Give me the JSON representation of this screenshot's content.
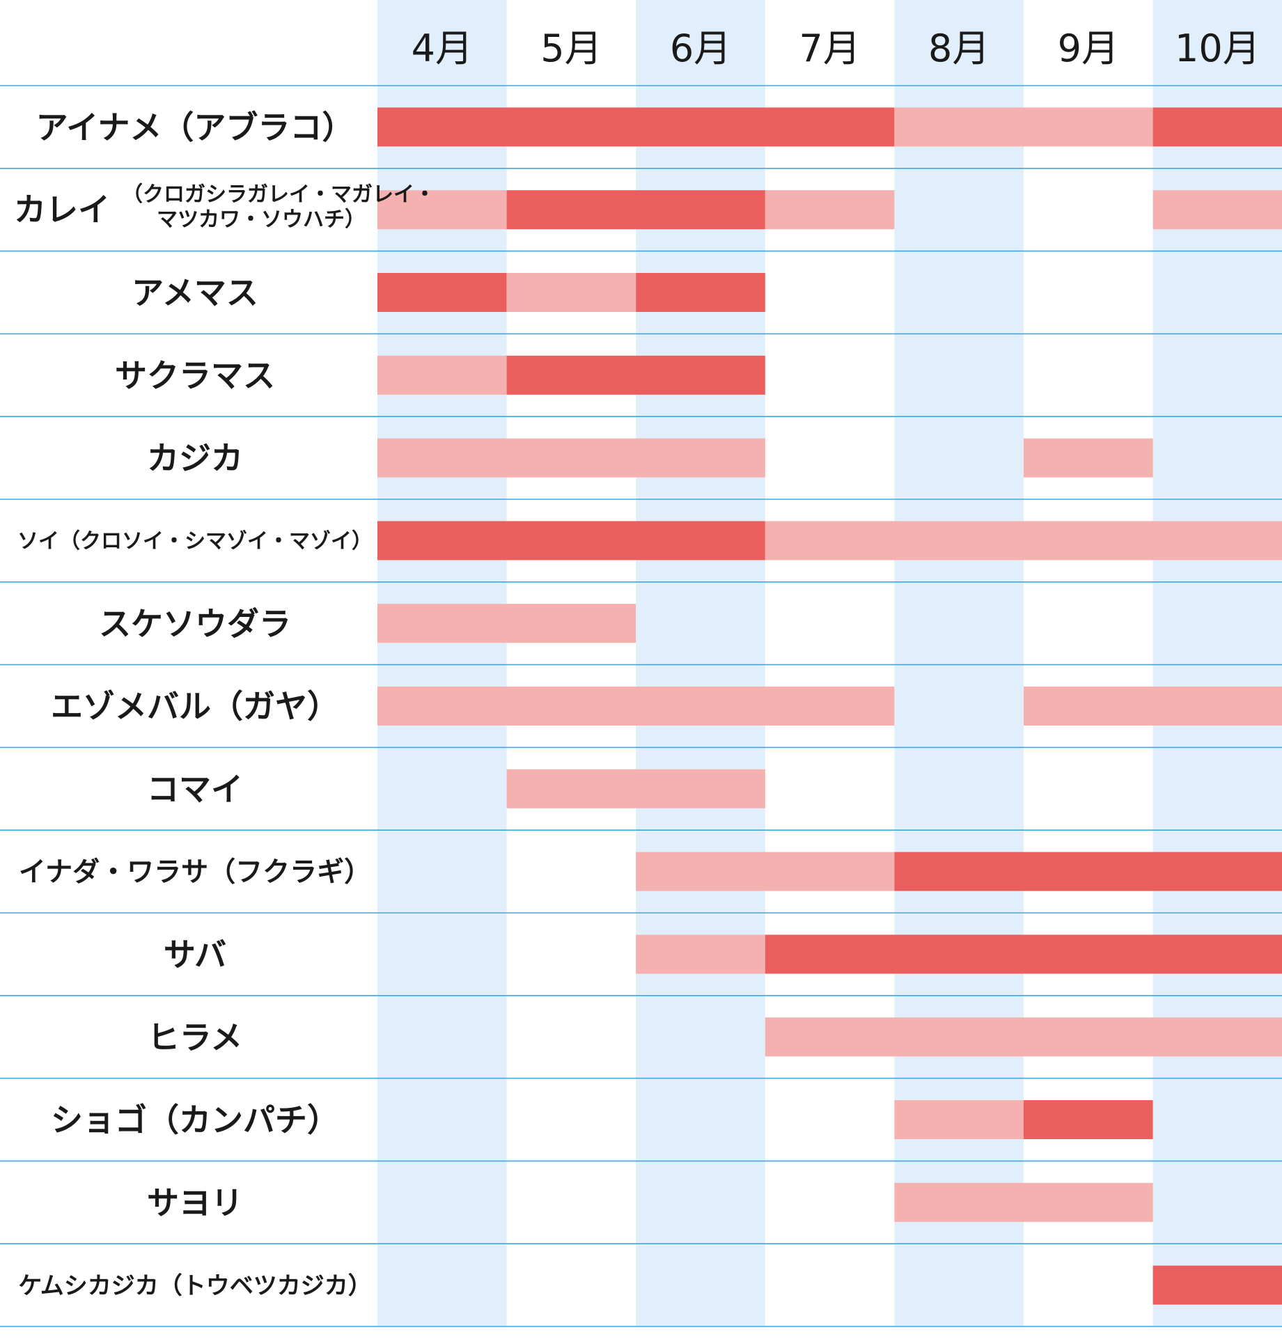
{
  "chart_data": {
    "type": "bar",
    "subtype": "timeline",
    "title": "",
    "xlabel": "",
    "ylabel": "",
    "months": [
      "4月",
      "5月",
      "6月",
      "7月",
      "8月",
      "9月",
      "10月"
    ],
    "legend": [],
    "colors": {
      "peak": "#ea5f5e",
      "season": "#f4b1b0",
      "column_shade": "#e1eefb",
      "grid_line": "#3fa7e0"
    },
    "rows": [
      {
        "name": "アイナメ（アブラコ）",
        "sub": [],
        "bars": [
          {
            "start": 0,
            "end": 4,
            "level": "peak"
          },
          {
            "start": 4,
            "end": 6,
            "level": "season"
          },
          {
            "start": 6,
            "end": 7,
            "level": "peak"
          }
        ]
      },
      {
        "name": "カレイ",
        "sub": [
          "（クロガシラガレイ・マガレイ・",
          "マツカワ・ソウハチ）"
        ],
        "bars": [
          {
            "start": 0,
            "end": 1,
            "level": "season"
          },
          {
            "start": 1,
            "end": 3,
            "level": "peak"
          },
          {
            "start": 3,
            "end": 4,
            "level": "season"
          },
          {
            "start": 6,
            "end": 7,
            "level": "season"
          }
        ]
      },
      {
        "name": "アメマス",
        "sub": [],
        "bars": [
          {
            "start": 0,
            "end": 1,
            "level": "peak"
          },
          {
            "start": 1,
            "end": 2,
            "level": "season"
          },
          {
            "start": 2,
            "end": 3,
            "level": "peak"
          }
        ]
      },
      {
        "name": "サクラマス",
        "sub": [],
        "bars": [
          {
            "start": 0,
            "end": 1,
            "level": "season"
          },
          {
            "start": 1,
            "end": 3,
            "level": "peak"
          }
        ]
      },
      {
        "name": "カジカ",
        "sub": [],
        "bars": [
          {
            "start": 0,
            "end": 3,
            "level": "season"
          },
          {
            "start": 5,
            "end": 6,
            "level": "season"
          }
        ]
      },
      {
        "name": "ソイ（クロソイ・シマゾイ・マゾイ）",
        "sub": [],
        "bars": [
          {
            "start": 0,
            "end": 3,
            "level": "peak"
          },
          {
            "start": 3,
            "end": 7,
            "level": "season"
          }
        ]
      },
      {
        "name": "スケソウダラ",
        "sub": [],
        "bars": [
          {
            "start": 0,
            "end": 2,
            "level": "season"
          }
        ]
      },
      {
        "name": "エゾメバル（ガヤ）",
        "sub": [],
        "bars": [
          {
            "start": 0,
            "end": 4,
            "level": "season"
          },
          {
            "start": 5,
            "end": 7,
            "level": "season"
          }
        ]
      },
      {
        "name": "コマイ",
        "sub": [],
        "bars": [
          {
            "start": 1,
            "end": 3,
            "level": "season"
          }
        ]
      },
      {
        "name": "イナダ・ワラサ（フクラギ）",
        "sub": [],
        "bars": [
          {
            "start": 2,
            "end": 4,
            "level": "season"
          },
          {
            "start": 4,
            "end": 7,
            "level": "peak"
          }
        ]
      },
      {
        "name": "サバ",
        "sub": [],
        "bars": [
          {
            "start": 2,
            "end": 3,
            "level": "season"
          },
          {
            "start": 3,
            "end": 7,
            "level": "peak"
          }
        ]
      },
      {
        "name": "ヒラメ",
        "sub": [],
        "bars": [
          {
            "start": 3,
            "end": 7,
            "level": "season"
          }
        ]
      },
      {
        "name": "ショゴ（カンパチ）",
        "sub": [],
        "bars": [
          {
            "start": 4,
            "end": 5,
            "level": "season"
          },
          {
            "start": 5,
            "end": 6,
            "level": "peak"
          }
        ]
      },
      {
        "name": "サヨリ",
        "sub": [],
        "bars": [
          {
            "start": 4,
            "end": 6,
            "level": "season"
          }
        ]
      },
      {
        "name": "ケムシカジカ（トウベツカジカ）",
        "sub": [],
        "bars": [
          {
            "start": 6,
            "end": 7,
            "level": "peak"
          }
        ]
      }
    ]
  }
}
